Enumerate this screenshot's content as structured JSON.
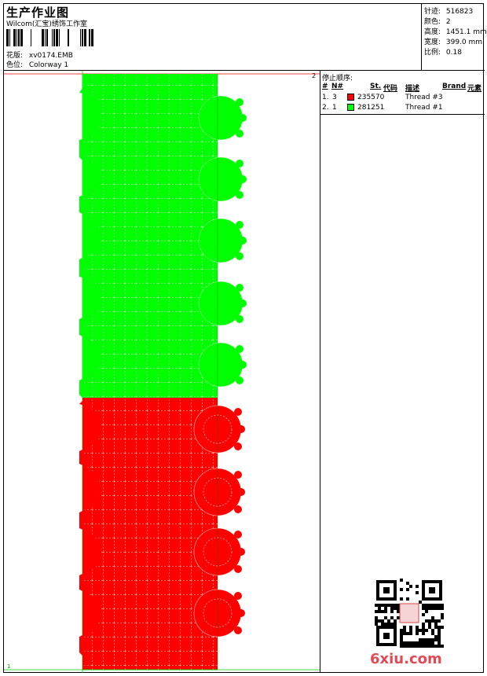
{
  "header": {
    "title": "生产作业图",
    "company": "Wilcom(汇宝)绣饰工作室",
    "design_label": "花版:",
    "design_value": "xv0174.EMB",
    "colorway_label": "色位:",
    "colorway_value": "Colorway 1"
  },
  "stats": {
    "stitches_label": "针迹:",
    "stitches_value": "516823",
    "colors_label": "颜色:",
    "colors_value": "2",
    "height_label": "高度:",
    "height_value": "1451.1 mm",
    "width_label": "宽度:",
    "width_value": "399.0 mm",
    "scale_label": "比例:",
    "scale_value": "0.18"
  },
  "design_area": {
    "top_marker": "2",
    "bottom_marker": "1"
  },
  "stop_sequence": {
    "title": "停止顺序:",
    "columns": [
      "#",
      "N#",
      "St.",
      "代码",
      "描述",
      "Brand",
      "元素"
    ],
    "rows": [
      {
        "index": "1.",
        "n": "3",
        "code": "235570",
        "description": "Thread #3",
        "color": "#ff0000"
      },
      {
        "index": "2.",
        "n": "1",
        "code": "281251",
        "description": "Thread #1",
        "color": "#00ff00"
      }
    ]
  },
  "colors": {
    "red": "#ff0000",
    "green": "#00ff00",
    "guide_red": "#ff0000",
    "guide_green": "#00cc00",
    "watermark": "#e34a55"
  },
  "watermark": {
    "text": "6xiu.com"
  }
}
